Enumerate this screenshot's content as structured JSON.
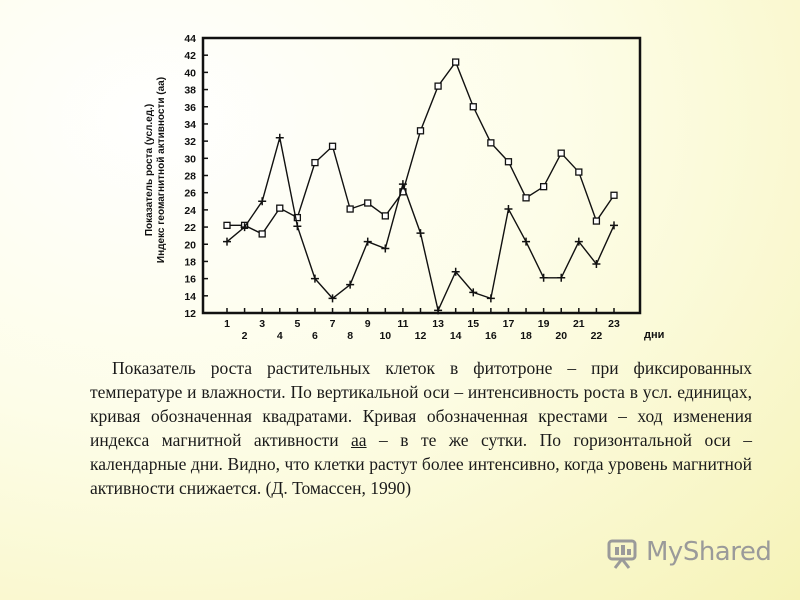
{
  "chart_data": {
    "type": "line",
    "ylabel": [
      "Показатель роста (усл.ед.)",
      "Индекс геомагнитной активности (аа)"
    ],
    "xlabel": "дни",
    "categories": [
      "1",
      "2",
      "3",
      "4",
      "5",
      "6",
      "7",
      "8",
      "9",
      "10",
      "11",
      "12",
      "13",
      "14",
      "15",
      "16",
      "17",
      "18",
      "19",
      "20",
      "21",
      "22",
      "23"
    ],
    "series": [
      {
        "marker": "square",
        "color": "#111111",
        "values": [
          22.2,
          22.2,
          21.2,
          24.2,
          23.1,
          29.5,
          31.4,
          24.1,
          24.8,
          23.3,
          26.1,
          33.2,
          38.4,
          41.2,
          36.0,
          31.8,
          29.6,
          25.4,
          26.7,
          30.6,
          28.4,
          22.7,
          25.7
        ]
      },
      {
        "marker": "cross",
        "color": "#111111",
        "values": [
          20.3,
          22.0,
          25.0,
          32.4,
          22.1,
          16.0,
          13.7,
          15.3,
          20.3,
          19.5,
          27.0,
          21.3,
          12.3,
          16.8,
          14.4,
          13.7,
          24.1,
          20.3,
          16.1,
          16.1,
          20.3,
          17.7,
          22.2
        ]
      }
    ],
    "ylim": [
      12,
      44
    ],
    "yticks": [
      12,
      14,
      16,
      18,
      20,
      22,
      24,
      26,
      28,
      30,
      32,
      34,
      36,
      38,
      40,
      42,
      44
    ]
  },
  "caption": {
    "before": "Показатель роста растительных клеток в фитотроне – при фиксированных температуре и влажности. По вертикальной оси – интенсивность роста в усл. единицах, кривая обозначенная квадратами. Кривая обозначенная крестами – ход изменения индекса магнитной активности ",
    "underlined": "аа",
    "after": " – в те же сутки. По горизонтальной оси – календарные дни. Видно, что клетки растут более интенсивно, когда уровень магнитной активности снижается. (Д. Томассен, 1990)"
  },
  "watermark": "MyShared"
}
